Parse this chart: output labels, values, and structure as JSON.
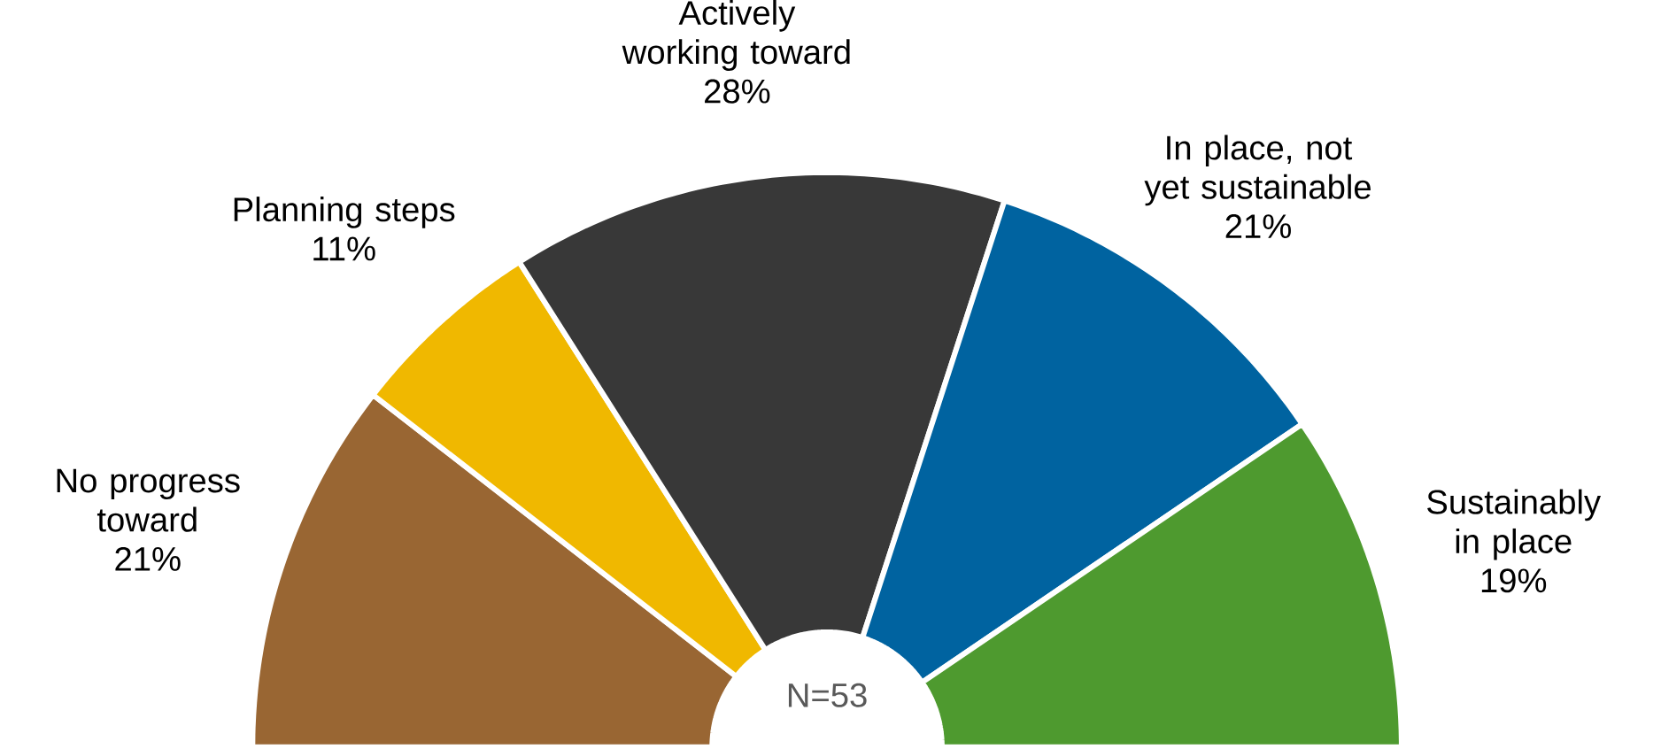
{
  "chart_data": {
    "type": "donut",
    "categories": [
      "No progress toward",
      "Planning steps",
      "Actively working toward",
      "In place, not yet sustainable",
      "Sustainably in place"
    ],
    "values": [
      21,
      11,
      28,
      21,
      19
    ],
    "value_labels": [
      "21%",
      "11%",
      "28%",
      "21%",
      "19%"
    ],
    "colors": [
      "#996633",
      "#f0b800",
      "#383838",
      "#0063a0",
      "#4e9a2f"
    ],
    "annotations": [
      "N=53"
    ]
  }
}
